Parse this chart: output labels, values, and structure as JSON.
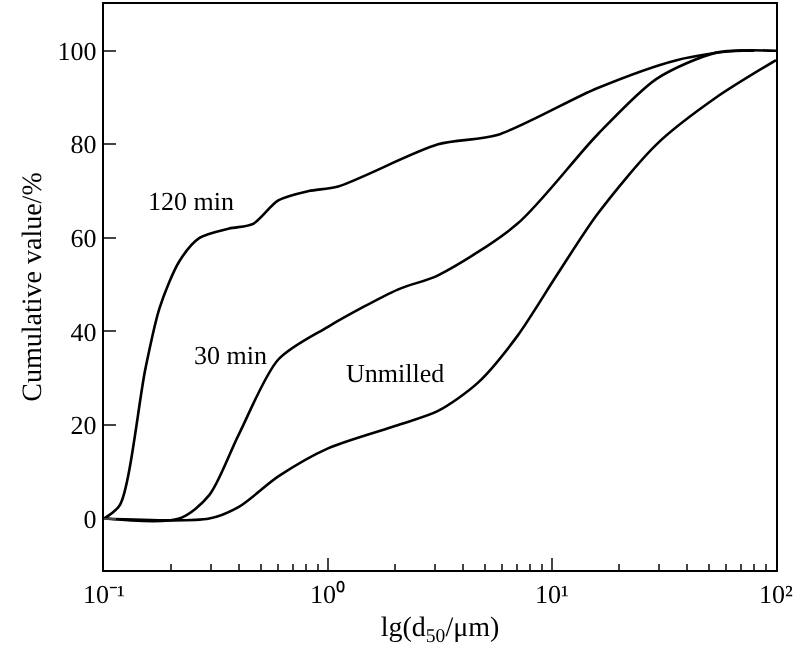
{
  "chart_data": {
    "type": "line",
    "xlabel": "lg(d$_{50}$/μm)",
    "ylabel": "Cumulative value/%",
    "log": "x",
    "xlim": [
      0.1,
      100
    ],
    "ylim": [
      -11,
      110
    ],
    "xticks": [
      {
        "value": 0.1,
        "label": "10⁻¹"
      },
      {
        "value": 1,
        "label": "10⁰"
      },
      {
        "value": 10,
        "label": "10¹"
      },
      {
        "value": 100,
        "label": "10²"
      }
    ],
    "yticks": [
      0,
      20,
      40,
      60,
      80,
      100
    ],
    "marker": "none",
    "line_style": "solid",
    "series": [
      {
        "name": "120 min",
        "color": "#000000",
        "x": [
          0.1,
          0.118,
          0.153,
          0.177,
          0.217,
          0.267,
          0.362,
          0.463,
          0.6,
          0.82,
          1.11,
          3.1,
          5.7,
          15.9,
          36,
          66,
          100
        ],
        "values": [
          0,
          3,
          32,
          45,
          55,
          60,
          62,
          63,
          68,
          70,
          71,
          80,
          82,
          92,
          98,
          100,
          100
        ]
      },
      {
        "name": "30 min",
        "color": "#000000",
        "x": [
          0.1,
          0.217,
          0.295,
          0.4,
          0.6,
          1.0,
          2.06,
          3.1,
          7.0,
          15.9,
          29.3,
          54,
          80
        ],
        "values": [
          0,
          0,
          5,
          18,
          34,
          41,
          49,
          52,
          63,
          82,
          94,
          99.6,
          100
        ]
      },
      {
        "name": "Unmilled",
        "color": "#000000",
        "x": [
          0.1,
          0.295,
          0.4,
          0.6,
          1.0,
          2.06,
          3.1,
          4.66,
          7.0,
          10.5,
          15.9,
          29.3,
          54,
          100
        ],
        "values": [
          0,
          0,
          2.5,
          9,
          15,
          20,
          23,
          29,
          39,
          52,
          65,
          80,
          90,
          98
        ]
      }
    ]
  }
}
